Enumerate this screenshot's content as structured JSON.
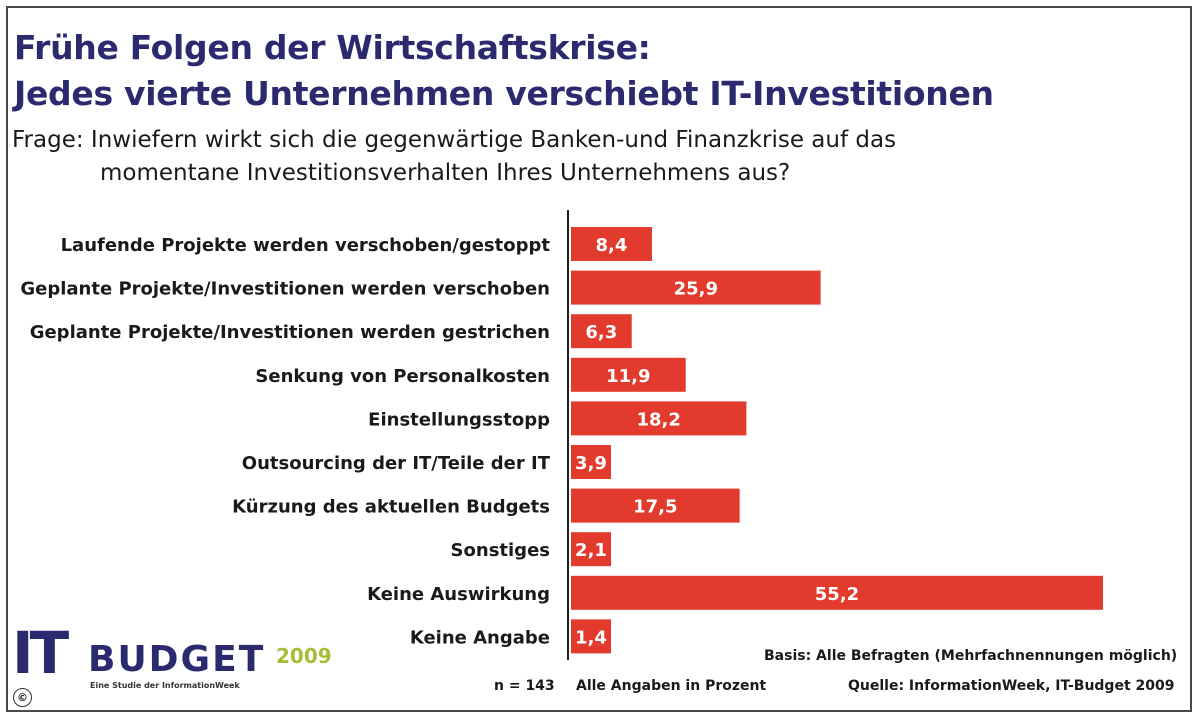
{
  "header": {
    "title_line1": "Frühe Folgen der Wirtschaftskrise:",
    "title_line2": "Jedes vierte Unternehmen verschiebt IT-Investitionen",
    "question_line1": "Frage: Inwiefern wirkt sich die gegenwärtige Banken-und Finanzkrise auf das",
    "question_line2": "momentane Investitionsverhalten Ihres Unternehmens aus?"
  },
  "colors": {
    "bar": "#e23b2e",
    "title": "#2b2a6e",
    "axis": "#222222",
    "logo_year": "#a7bd3a"
  },
  "chart_data": {
    "type": "bar",
    "orientation": "horizontal",
    "categories": [
      "Laufende Projekte werden verschoben/gestoppt",
      "Geplante Projekte/Investitionen werden verschoben",
      "Geplante Projekte/Investitionen werden gestrichen",
      "Senkung von Personalkosten",
      "Einstellungsstopp",
      "Outsourcing der IT/Teile der IT",
      "Kürzung des aktuellen Budgets",
      "Sonstiges",
      "Keine Auswirkung",
      "Keine Angabe"
    ],
    "values": [
      8.4,
      25.9,
      6.3,
      11.9,
      18.2,
      3.9,
      17.5,
      2.1,
      55.2,
      1.4
    ],
    "value_labels": [
      "8,4",
      "25,9",
      "6,3",
      "11,9",
      "18,2",
      "3,9",
      "17,5",
      "2,1",
      "55,2",
      "1,4"
    ],
    "xlim": [
      0,
      60
    ],
    "grid": false,
    "legend": "none"
  },
  "footer": {
    "basis": "Basis: Alle Befragten (Mehrfachnennungen möglich)",
    "n": "n = 143",
    "units": "Alle Angaben in Prozent",
    "source": "Quelle: InformationWeek, IT-Budget 2009"
  },
  "logo": {
    "it": "IT",
    "budget": "BUDGET",
    "year": "2009",
    "subtitle": "Eine Studie der InformationWeek"
  },
  "copyright_symbol": "©"
}
